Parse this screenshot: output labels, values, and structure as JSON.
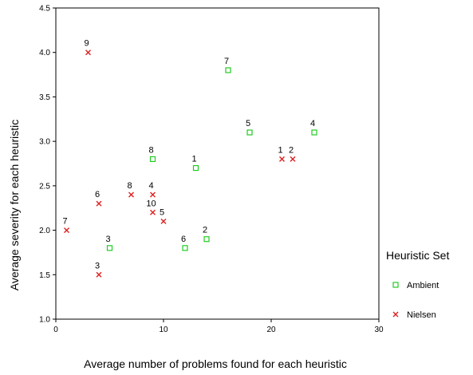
{
  "chart_data": {
    "type": "scatter",
    "title": "",
    "xlabel": "Average number of problems found for each heuristic",
    "ylabel": "Average severity for each heuristic",
    "xlim": [
      0,
      30
    ],
    "ylim": [
      1.0,
      4.5
    ],
    "x_ticks": [
      "0",
      "10",
      "20",
      "30"
    ],
    "y_ticks": [
      "1.0",
      "1.5",
      "2.0",
      "2.5",
      "3.0",
      "3.5",
      "4.0",
      "4.5"
    ],
    "grid": false,
    "legend": {
      "title": "Heuristic Set",
      "position": "right"
    },
    "series": [
      {
        "name": "Ambient",
        "marker": "square",
        "color": "#22cc22",
        "points": [
          {
            "label": "1",
            "x": 13,
            "y": 2.7
          },
          {
            "label": "2",
            "x": 14,
            "y": 1.9
          },
          {
            "label": "3",
            "x": 5,
            "y": 1.8
          },
          {
            "label": "4",
            "x": 24,
            "y": 3.1
          },
          {
            "label": "5",
            "x": 18,
            "y": 3.1
          },
          {
            "label": "6",
            "x": 12,
            "y": 1.8
          },
          {
            "label": "7",
            "x": 16,
            "y": 3.8
          },
          {
            "label": "8",
            "x": 9,
            "y": 2.8
          }
        ]
      },
      {
        "name": "Nielsen",
        "marker": "x",
        "color": "#dd2222",
        "points": [
          {
            "label": "1",
            "x": 21,
            "y": 2.8
          },
          {
            "label": "2",
            "x": 22,
            "y": 2.8
          },
          {
            "label": "3",
            "x": 4,
            "y": 1.5
          },
          {
            "label": "4",
            "x": 9,
            "y": 2.4
          },
          {
            "label": "5",
            "x": 10,
            "y": 2.1
          },
          {
            "label": "6",
            "x": 4,
            "y": 2.3
          },
          {
            "label": "7",
            "x": 1,
            "y": 2.0
          },
          {
            "label": "8",
            "x": 7,
            "y": 2.4
          },
          {
            "label": "9",
            "x": 3,
            "y": 4.0
          },
          {
            "label": "10",
            "x": 9,
            "y": 2.2
          }
        ]
      }
    ]
  }
}
